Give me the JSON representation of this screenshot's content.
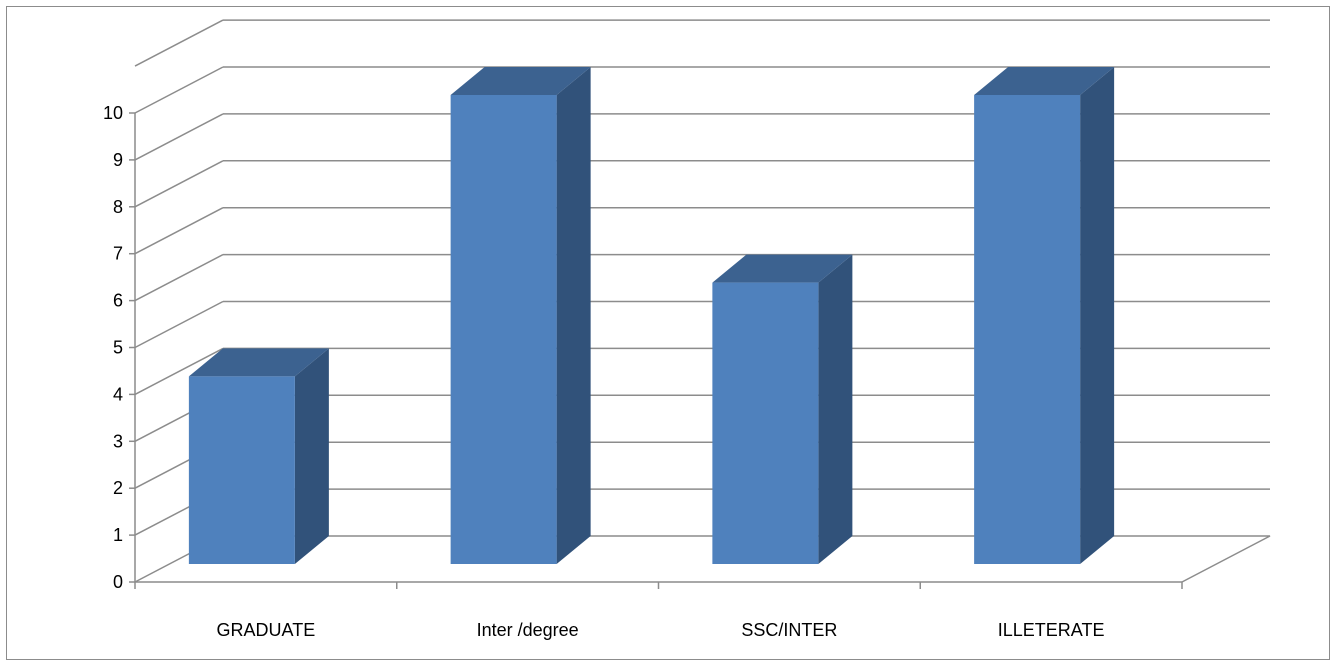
{
  "chart_data": {
    "type": "bar",
    "style": "3d-column",
    "categories": [
      "GRADUATE",
      "Inter /degree",
      "SSC/INTER",
      "ILLETERATE"
    ],
    "values": [
      4,
      10,
      6,
      10
    ],
    "ylim": [
      0,
      10
    ],
    "yticks": [
      "0",
      "1",
      "2",
      "3",
      "4",
      "5",
      "6",
      "7",
      "8",
      "9",
      "10"
    ],
    "grid": true,
    "legend": "none",
    "colors": {
      "front": "#4f81bd",
      "side": "#31527a",
      "top": "#3c6290",
      "grid": "#8c8c8c",
      "axis": "#8c8c8c"
    }
  }
}
